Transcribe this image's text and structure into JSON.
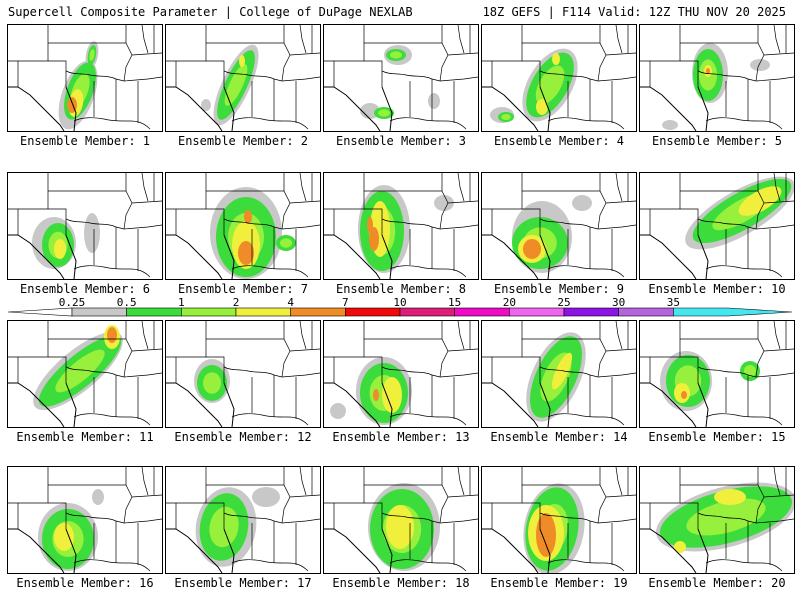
{
  "header": {
    "left": "Supercell Composite Parameter | College of DuPage NEXLAB",
    "right": "18Z GEFS | F114 Valid: 12Z THU NOV 20 2025"
  },
  "members": [
    {
      "label": "Ensemble Member: 1"
    },
    {
      "label": "Ensemble Member: 2"
    },
    {
      "label": "Ensemble Member: 3"
    },
    {
      "label": "Ensemble Member: 4"
    },
    {
      "label": "Ensemble Member: 5"
    },
    {
      "label": "Ensemble Member: 6"
    },
    {
      "label": "Ensemble Member: 7"
    },
    {
      "label": "Ensemble Member: 8"
    },
    {
      "label": "Ensemble Member: 9"
    },
    {
      "label": "Ensemble Member: 10"
    },
    {
      "label": "Ensemble Member: 11"
    },
    {
      "label": "Ensemble Member: 12"
    },
    {
      "label": "Ensemble Member: 13"
    },
    {
      "label": "Ensemble Member: 14"
    },
    {
      "label": "Ensemble Member: 15"
    },
    {
      "label": "Ensemble Member: 16"
    },
    {
      "label": "Ensemble Member: 17"
    },
    {
      "label": "Ensemble Member: 18"
    },
    {
      "label": "Ensemble Member: 19"
    },
    {
      "label": "Ensemble Member: 20"
    }
  ],
  "colorbar": {
    "tick_labels": [
      "0.25",
      "0.5",
      "1",
      "2",
      "4",
      "7",
      "10",
      "15",
      "20",
      "25",
      "30",
      "35"
    ],
    "colors": [
      "#c8c8c8",
      "#3cdc3c",
      "#96f03c",
      "#f0f03c",
      "#f08c28",
      "#f00a0a",
      "#dc1e78",
      "#f00ac8",
      "#f064f0",
      "#8c14e6",
      "#b464dc",
      "#46e6f0"
    ]
  }
}
